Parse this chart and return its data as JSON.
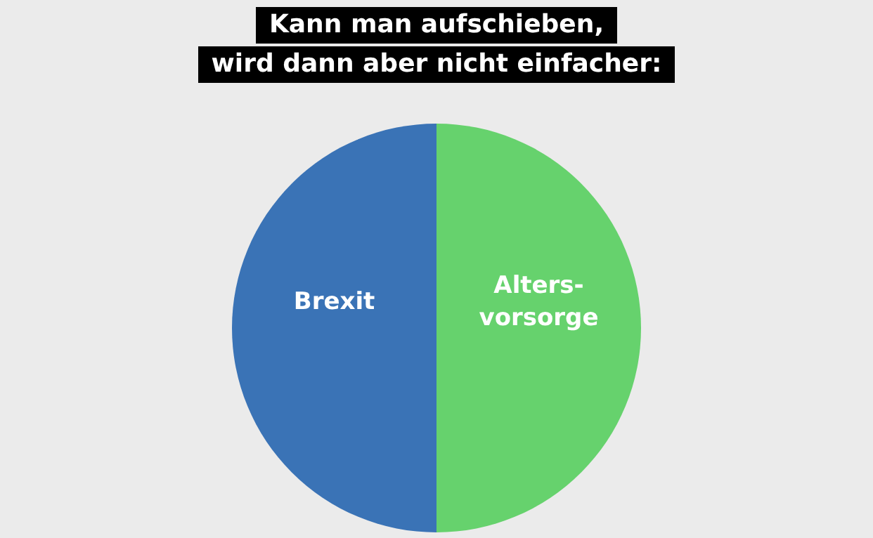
{
  "chart_data": {
    "type": "pie",
    "title": "Kann man aufschieben,\nwird dann aber nicht einfacher:",
    "categories": [
      "Brexit",
      "Alters-\nvorsorge"
    ],
    "values": [
      50,
      50
    ],
    "colors": [
      "#3a73b6",
      "#66d26d"
    ],
    "data_labels": false,
    "legend": false
  }
}
